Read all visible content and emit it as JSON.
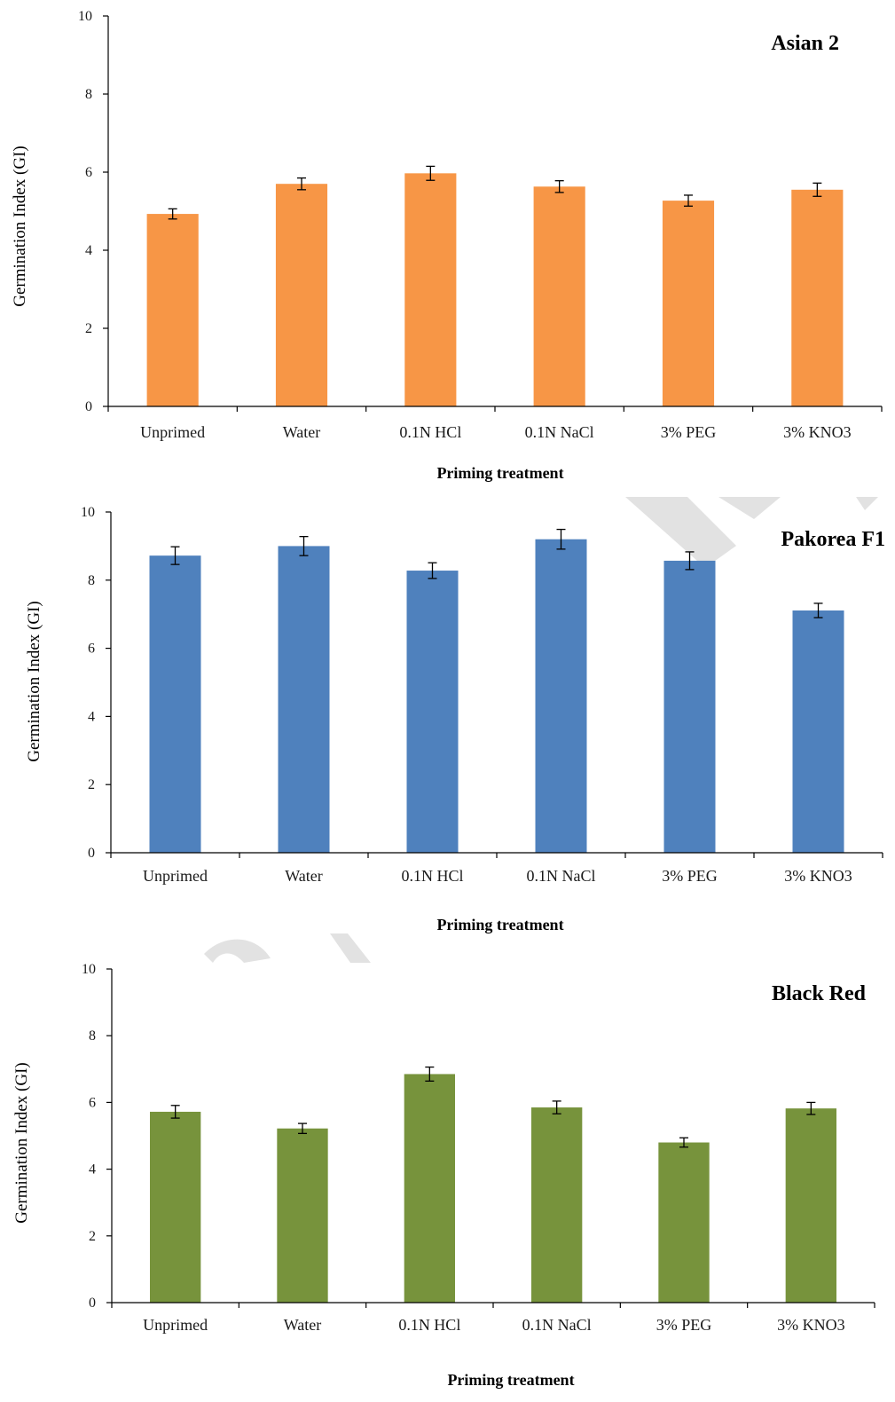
{
  "chart_data": [
    {
      "type": "bar",
      "title": "Asian 2",
      "xlabel": "Priming treatment",
      "ylabel": "Germination Index (GI)",
      "categories": [
        "Unprimed",
        "Water",
        "0.1N HCl",
        "0.1N NaCl",
        "3% PEG",
        "3% KNO3"
      ],
      "values": [
        4.93,
        5.7,
        5.97,
        5.63,
        5.27,
        5.55
      ],
      "errors": [
        0.13,
        0.15,
        0.18,
        0.15,
        0.14,
        0.17
      ],
      "yticks": [
        "0",
        "2",
        "4",
        "6",
        "8",
        "10"
      ],
      "ylim": [
        0,
        10
      ],
      "grid": false,
      "color": "#F79646"
    },
    {
      "type": "bar",
      "title": "Pakorea F1",
      "xlabel": "Priming treatment",
      "ylabel": "Germination Index (GI)",
      "categories": [
        "Unprimed",
        "Water",
        "0.1N HCl",
        "0.1N NaCl",
        "3% PEG",
        "3% KNO3"
      ],
      "values": [
        8.72,
        9.0,
        8.28,
        9.2,
        8.57,
        7.11
      ],
      "errors": [
        0.26,
        0.28,
        0.23,
        0.29,
        0.26,
        0.21
      ],
      "yticks": [
        "0",
        "2",
        "4",
        "6",
        "8",
        "10"
      ],
      "ylim": [
        0,
        10
      ],
      "grid": false,
      "color": "#4F81BD"
    },
    {
      "type": "bar",
      "title": "Black Red",
      "xlabel": "Priming treatment",
      "ylabel": "Germination Index (GI)",
      "categories": [
        "Unprimed",
        "Water",
        "0.1N HCl",
        "0.1N NaCl",
        "3% PEG",
        "3% KNO3"
      ],
      "values": [
        5.72,
        5.22,
        6.85,
        5.85,
        4.8,
        5.82
      ],
      "errors": [
        0.19,
        0.15,
        0.21,
        0.19,
        0.14,
        0.18
      ],
      "yticks": [
        "0",
        "2",
        "4",
        "6",
        "8",
        "10"
      ],
      "ylim": [
        0,
        10
      ],
      "grid": false,
      "color": "#77933C"
    }
  ]
}
